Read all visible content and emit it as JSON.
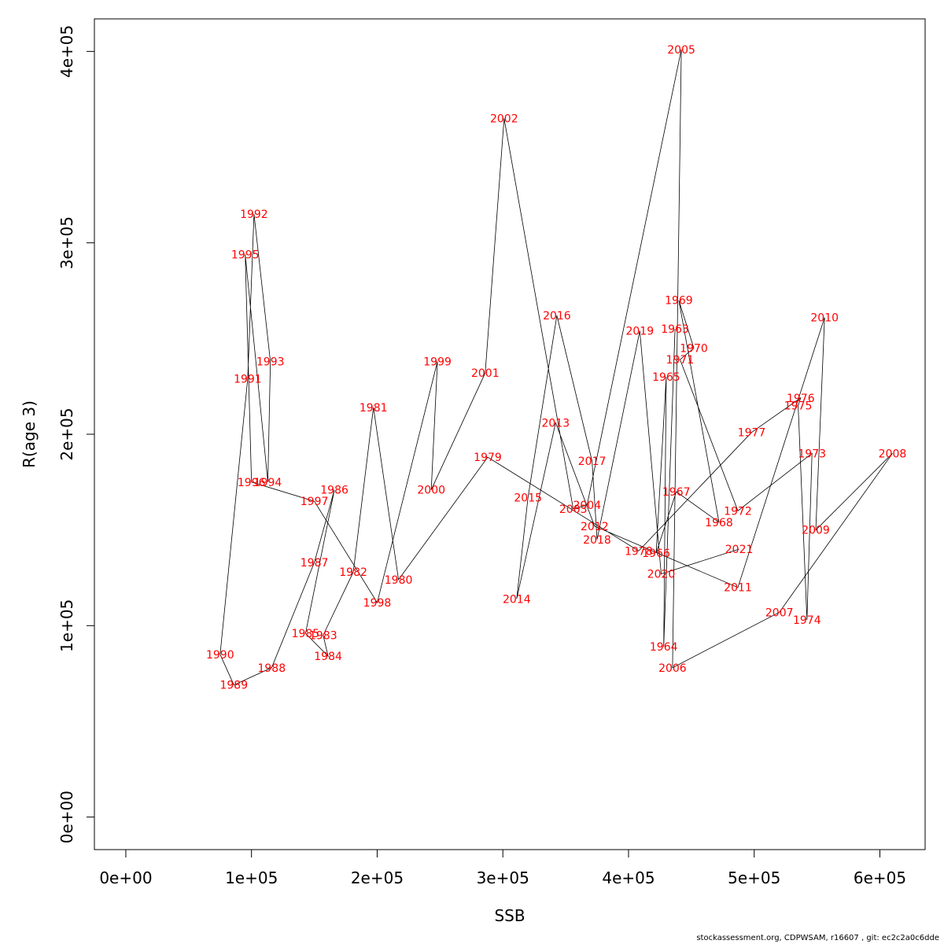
{
  "footer": "stockassessment.org, CDPWSAM, r16607 , git: ec2c2a0c6dde",
  "chart_data": {
    "type": "line",
    "xlabel": "SSB",
    "ylabel": "R(age 3)",
    "xlim": [
      -25000,
      636000
    ],
    "ylim": [
      -17000,
      417000
    ],
    "xticks": [
      0,
      100000,
      200000,
      300000,
      400000,
      500000,
      600000
    ],
    "xtick_labels": [
      "0e+00",
      "1e+05",
      "2e+05",
      "3e+05",
      "4e+05",
      "5e+05",
      "6e+05"
    ],
    "yticks": [
      0,
      100000,
      200000,
      300000,
      400000
    ],
    "ytick_labels": [
      "0e+00",
      "1e+05",
      "2e+05",
      "3e+05",
      "4e+05"
    ],
    "line_color": "#000000",
    "label_color": "#ff0000",
    "points": [
      {
        "year": "1963",
        "x": 437000,
        "y": 255000
      },
      {
        "year": "1964",
        "x": 428000,
        "y": 89000
      },
      {
        "year": "1965",
        "x": 430000,
        "y": 230000
      },
      {
        "year": "1966",
        "x": 422000,
        "y": 138000
      },
      {
        "year": "1967",
        "x": 438000,
        "y": 170000
      },
      {
        "year": "1968",
        "x": 472000,
        "y": 154000
      },
      {
        "year": "1969",
        "x": 440000,
        "y": 270000
      },
      {
        "year": "1970",
        "x": 452000,
        "y": 245000
      },
      {
        "year": "1971",
        "x": 441000,
        "y": 239000
      },
      {
        "year": "1972",
        "x": 487000,
        "y": 160000
      },
      {
        "year": "1973",
        "x": 546000,
        "y": 190000
      },
      {
        "year": "1974",
        "x": 542000,
        "y": 103000
      },
      {
        "year": "1975",
        "x": 535000,
        "y": 215000
      },
      {
        "year": "1976",
        "x": 537000,
        "y": 219000
      },
      {
        "year": "1977",
        "x": 498000,
        "y": 201000
      },
      {
        "year": "1978",
        "x": 408000,
        "y": 139000
      },
      {
        "year": "1979",
        "x": 288000,
        "y": 188000
      },
      {
        "year": "1980",
        "x": 217000,
        "y": 124000
      },
      {
        "year": "1981",
        "x": 197000,
        "y": 214000
      },
      {
        "year": "1982",
        "x": 181000,
        "y": 128000
      },
      {
        "year": "1983",
        "x": 157000,
        "y": 95000
      },
      {
        "year": "1984",
        "x": 161000,
        "y": 84000
      },
      {
        "year": "1985",
        "x": 143000,
        "y": 96000
      },
      {
        "year": "1986",
        "x": 166000,
        "y": 171000
      },
      {
        "year": "1987",
        "x": 150000,
        "y": 133000
      },
      {
        "year": "1988",
        "x": 116000,
        "y": 78000
      },
      {
        "year": "1989",
        "x": 86000,
        "y": 69000
      },
      {
        "year": "1990",
        "x": 75000,
        "y": 85000
      },
      {
        "year": "1991",
        "x": 97000,
        "y": 229000
      },
      {
        "year": "1992",
        "x": 102000,
        "y": 315000
      },
      {
        "year": "1993",
        "x": 115000,
        "y": 238000
      },
      {
        "year": "1994",
        "x": 113000,
        "y": 175000
      },
      {
        "year": "1995",
        "x": 95000,
        "y": 294000
      },
      {
        "year": "1996",
        "x": 100000,
        "y": 175000
      },
      {
        "year": "1997",
        "x": 150000,
        "y": 165000
      },
      {
        "year": "1998",
        "x": 200000,
        "y": 112000
      },
      {
        "year": "1999",
        "x": 248000,
        "y": 238000
      },
      {
        "year": "2000",
        "x": 243000,
        "y": 171000
      },
      {
        "year": "2001",
        "x": 286000,
        "y": 232000
      },
      {
        "year": "2002",
        "x": 301000,
        "y": 365000
      },
      {
        "year": "2003",
        "x": 356000,
        "y": 161000
      },
      {
        "year": "2004",
        "x": 367000,
        "y": 163000
      },
      {
        "year": "2005",
        "x": 442000,
        "y": 401000
      },
      {
        "year": "2006",
        "x": 435000,
        "y": 78000
      },
      {
        "year": "2007",
        "x": 520000,
        "y": 107000
      },
      {
        "year": "2008",
        "x": 610000,
        "y": 190000
      },
      {
        "year": "2009",
        "x": 549000,
        "y": 150000
      },
      {
        "year": "2010",
        "x": 556000,
        "y": 261000
      },
      {
        "year": "2011",
        "x": 487000,
        "y": 120000
      },
      {
        "year": "2012",
        "x": 373000,
        "y": 152000
      },
      {
        "year": "2013",
        "x": 342000,
        "y": 206000
      },
      {
        "year": "2014",
        "x": 311000,
        "y": 114000
      },
      {
        "year": "2015",
        "x": 320000,
        "y": 167000
      },
      {
        "year": "2016",
        "x": 343000,
        "y": 262000
      },
      {
        "year": "2017",
        "x": 371000,
        "y": 186000
      },
      {
        "year": "2018",
        "x": 375000,
        "y": 145000
      },
      {
        "year": "2019",
        "x": 409000,
        "y": 254000
      },
      {
        "year": "2020",
        "x": 426000,
        "y": 127000
      },
      {
        "year": "2021",
        "x": 488000,
        "y": 140000
      }
    ]
  }
}
